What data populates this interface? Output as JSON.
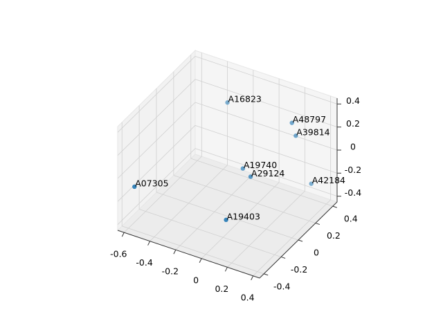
{
  "chart_data": {
    "type": "scatter3d",
    "labels": [
      "A16823",
      "A48797",
      "A39814",
      "A19740",
      "A29124",
      "A42184",
      "A07305",
      "A19403"
    ],
    "x": [
      -0.28,
      0.28,
      0.31,
      -0.04,
      0.08,
      0.37,
      -0.64,
      0.07
    ],
    "y": [
      0.27,
      0.18,
      0.18,
      0.09,
      0.0,
      0.27,
      -0.27,
      -0.27
    ],
    "z": [
      0.27,
      0.37,
      0.27,
      -0.08,
      -0.04,
      -0.19,
      -0.2,
      -0.22
    ],
    "color": "#1f77b4",
    "xlim": [
      -0.65,
      0.45
    ],
    "ylim": [
      -0.45,
      0.45
    ],
    "zlim": [
      -0.45,
      0.45
    ],
    "xticks": [
      -0.6,
      -0.4,
      -0.2,
      0.0,
      0.2,
      0.4
    ],
    "yticks": [
      -0.4,
      -0.2,
      0.0,
      0.2,
      0.4
    ],
    "zticks": [
      -0.4,
      -0.2,
      0.0,
      0.2,
      0.4
    ],
    "grid": true
  }
}
